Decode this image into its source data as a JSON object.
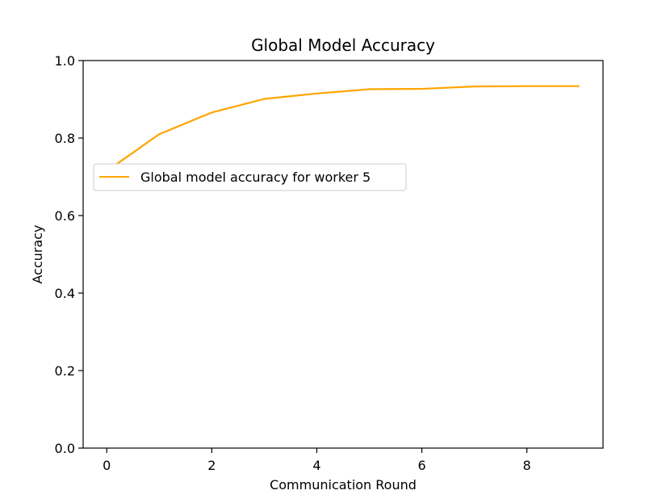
{
  "chart_data": {
    "type": "line",
    "title": "Global Model Accuracy",
    "xlabel": "Communication Round",
    "ylabel": "Accuracy",
    "xlim": [
      -0.45,
      9.45
    ],
    "ylim": [
      0.0,
      1.0
    ],
    "xticks": [
      0,
      2,
      4,
      6,
      8
    ],
    "xtick_labels": [
      "0",
      "2",
      "4",
      "6",
      "8"
    ],
    "yticks": [
      0.0,
      0.2,
      0.4,
      0.6,
      0.8,
      1.0
    ],
    "ytick_labels": [
      "0.0",
      "0.2",
      "0.4",
      "0.6",
      "0.8",
      "1.0"
    ],
    "grid": false,
    "legend_position": "center-left",
    "series": [
      {
        "name": "Global model accuracy for worker 5",
        "color": "#FFA500",
        "x": [
          0,
          1,
          2,
          3,
          4,
          5,
          6,
          7,
          8,
          9
        ],
        "y": [
          0.715,
          0.81,
          0.866,
          0.901,
          0.915,
          0.926,
          0.927,
          0.933,
          0.934,
          0.934
        ]
      }
    ]
  }
}
